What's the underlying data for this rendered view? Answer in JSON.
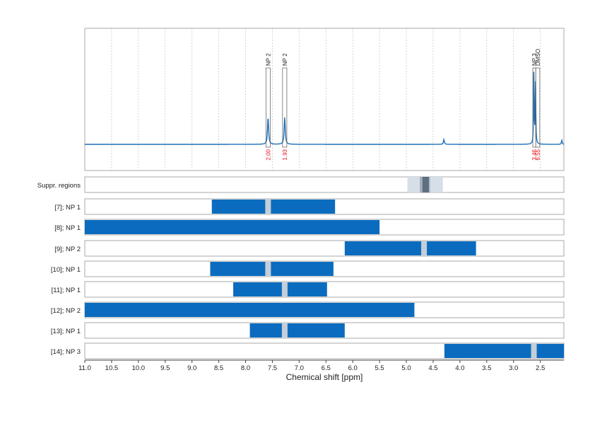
{
  "chart_data": {
    "type": "nmr-spectrum-with-range-bars",
    "xlabel": "Chemical shift [ppm]",
    "xlim": [
      11.0,
      2.06
    ],
    "x_reversed": true,
    "x_ticks": [
      11.0,
      10.5,
      10.0,
      9.5,
      9.0,
      8.5,
      8.0,
      7.5,
      7.0,
      6.5,
      6.0,
      5.5,
      5.0,
      4.5,
      4.0,
      3.5,
      3.0,
      2.5
    ],
    "x_tick_labels": [
      "11.0",
      "10.5",
      "10.0",
      "9.5",
      "9.0",
      "8.5",
      "8.0",
      "7.5",
      "7.0",
      "6.5",
      "6.0",
      "5.5",
      "5.0",
      "4.5",
      "4.0",
      "3.5",
      "3.0",
      "2.5"
    ],
    "grid": "vertical dotted",
    "colors": {
      "spectrum": "#1f6fb5",
      "bar": "#0b6cbf",
      "integral": "#e8101a",
      "cut": "#c5ced8",
      "frame": "#aaaaaa"
    },
    "spectrum": {
      "baseline": 0,
      "ymax": 1.0,
      "peaks": [
        {
          "x": 7.58,
          "height": 0.38,
          "width": 0.012
        },
        {
          "x": 7.27,
          "height": 0.38,
          "width": 0.012
        },
        {
          "x": 4.3,
          "height": 0.07,
          "width": 0.01
        },
        {
          "x": 2.62,
          "height": 1.1,
          "width": 0.006
        },
        {
          "x": 2.59,
          "height": 0.85,
          "width": 0.006
        },
        {
          "x": 2.1,
          "height": 0.06,
          "width": 0.008
        }
      ]
    },
    "peak_labels": [
      {
        "x": 7.58,
        "label": "NP 2",
        "integral": "2.00",
        "box": [
          7.62,
          7.54
        ]
      },
      {
        "x": 7.27,
        "label": "NP 2",
        "integral": "1.93",
        "box": [
          7.31,
          7.23
        ]
      },
      {
        "x": 2.62,
        "label": "NP 3",
        "integral": "3.46",
        "box": [
          2.64,
          2.585
        ]
      },
      {
        "x": 2.55,
        "label": "DMSO",
        "integral": "6.55",
        "box": [
          2.585,
          2.51
        ]
      }
    ],
    "rows": [
      {
        "label": "Suppr. regions",
        "kind": "suppr",
        "outer": [
          4.98,
          4.32
        ],
        "mid": [
          4.75,
          4.56
        ],
        "core": [
          4.7,
          4.58
        ]
      },
      {
        "label": "[7]; NP 1",
        "range": [
          8.63,
          6.33
        ],
        "cuts": [
          7.58
        ]
      },
      {
        "label": "[8]; NP 1",
        "range": [
          11.0,
          5.5
        ],
        "cuts": []
      },
      {
        "label": "[9]; NP 2",
        "range": [
          6.15,
          3.7
        ],
        "cuts": [
          4.67
        ]
      },
      {
        "label": "[10]; NP 1",
        "range": [
          8.66,
          6.36
        ],
        "cuts": [
          7.58
        ]
      },
      {
        "label": "[11]; NP 1",
        "range": [
          8.23,
          6.48
        ],
        "cuts": [
          7.27
        ]
      },
      {
        "label": "[12]; NP 2",
        "range": [
          11.0,
          4.85
        ],
        "cuts": []
      },
      {
        "label": "[13]; NP 1",
        "range": [
          7.92,
          6.15
        ],
        "cuts": [
          7.27
        ]
      },
      {
        "label": "[14]; NP 3",
        "range": [
          4.29,
          2.06
        ],
        "cuts": [
          2.62
        ]
      }
    ]
  }
}
